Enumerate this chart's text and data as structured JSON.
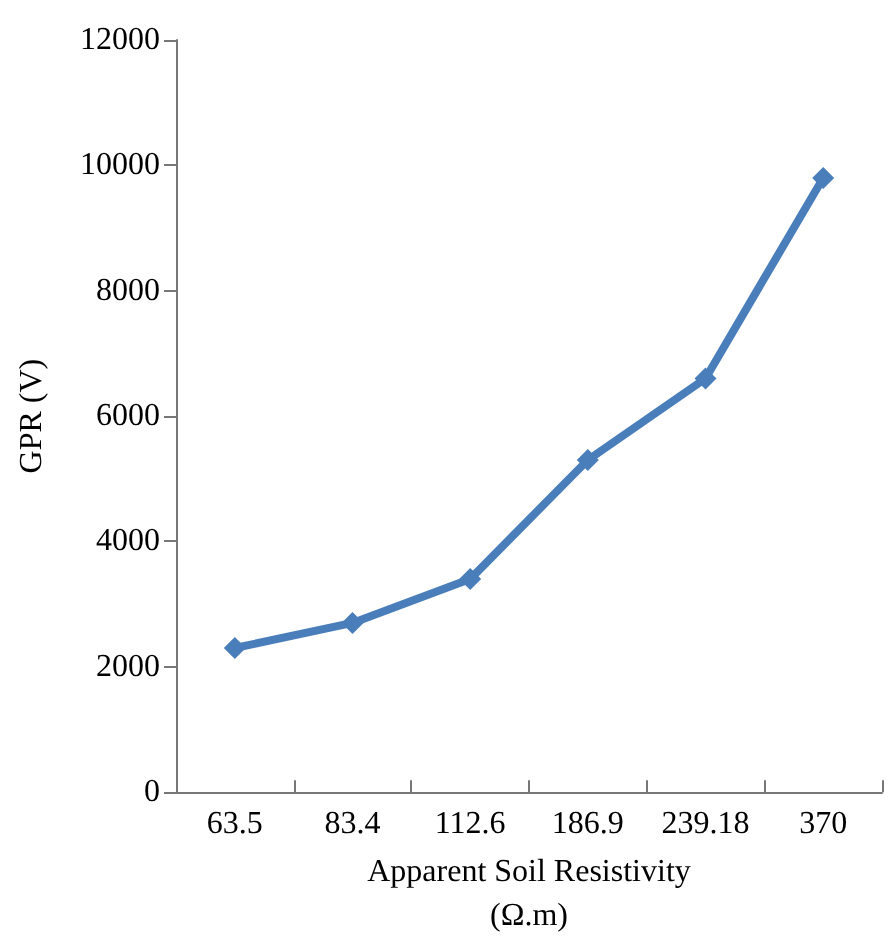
{
  "chart_data": {
    "type": "line",
    "xlabel": "Apparent Soil Resistivity\n(Ω.m)",
    "ylabel": "GPR (V)",
    "categories": [
      "63.5",
      "83.4",
      "112.6",
      "186.9",
      "239.18",
      "370"
    ],
    "series": [
      {
        "color": "#4a7ebb",
        "values": [
          2300,
          2700,
          3400,
          5300,
          6600,
          9800
        ]
      }
    ],
    "ylim": [
      0,
      12000
    ],
    "yticks": [
      0,
      2000,
      4000,
      6000,
      8000,
      10000,
      12000
    ],
    "grid": false,
    "marker": "diamond",
    "line_style": "solid"
  }
}
